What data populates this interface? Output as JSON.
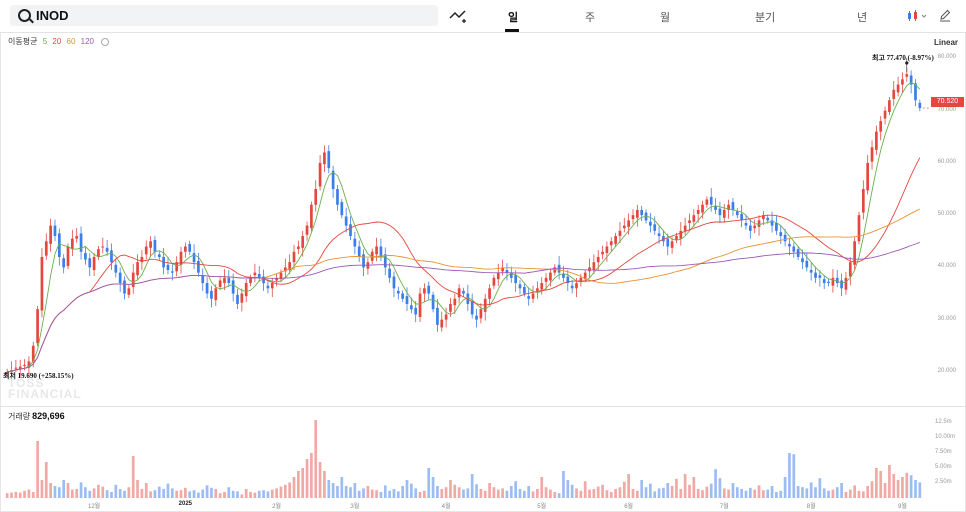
{
  "ticker": "INOD",
  "tabs": [
    "일",
    "주",
    "월",
    "분기",
    "년"
  ],
  "active_tab": "일",
  "ma_legend": {
    "label": "이동평균",
    "periods": [
      "5",
      "20",
      "60",
      "120"
    ],
    "colors": [
      "#6ab04c",
      "#e5473f",
      "#e8922f",
      "#9b59b6"
    ]
  },
  "scale_label": "Linear",
  "current_price": "70.520",
  "high_label": "최고",
  "high_value": "77.470 (-8.97%)",
  "low_label": "최저",
  "low_value": "19.690 (+258.15%)",
  "volume_label": "거래량",
  "volume_value": "829,696",
  "watermark": [
    "TOSS",
    "FINANCIAL"
  ],
  "colors": {
    "up": "#e5473f",
    "down": "#3b7de9",
    "vol_up": "#f0a9a5",
    "vol_down": "#9dbdf2"
  },
  "chart_data": {
    "type": "candlestick",
    "yticks": [
      "80.000",
      "70.000",
      "60.000",
      "50.000",
      "40.000",
      "30.000",
      "20.000"
    ],
    "ylim": [
      15,
      82
    ],
    "vol_yticks": [
      "12.5m",
      "10.00m",
      "7.50m",
      "5.00m",
      "2.50m"
    ],
    "vol_ylim": [
      0,
      13
    ],
    "xticks": [
      "12월",
      "2025",
      "2월",
      "3월",
      "4월",
      "5월",
      "6월",
      "7월",
      "8월",
      "9월"
    ],
    "xtick_index": [
      20,
      41,
      62,
      80,
      101,
      123,
      143,
      165,
      185,
      206
    ],
    "bold_xtick": "2025",
    "closes": [
      20,
      20.3,
      20.8,
      21,
      21.3,
      22,
      25,
      32,
      42,
      45,
      48,
      46,
      42,
      40,
      44,
      45.5,
      46,
      43,
      41.5,
      40,
      42,
      43.5,
      44,
      43,
      41,
      39,
      37,
      35,
      36,
      39,
      41,
      42,
      44,
      45,
      43,
      42,
      40,
      39.5,
      39,
      41,
      43,
      44,
      43,
      41,
      39,
      37,
      35,
      34,
      36,
      37.5,
      38,
      37,
      35,
      33,
      35,
      37,
      38,
      39,
      38,
      37,
      36,
      37,
      38,
      39,
      40,
      41,
      43,
      44,
      46,
      48,
      52,
      55,
      60,
      62,
      59,
      55,
      52,
      50,
      48,
      46,
      44,
      42,
      40,
      41,
      43,
      44,
      42,
      40,
      38,
      36,
      35,
      34,
      33,
      32,
      31,
      35,
      36,
      35,
      32,
      29,
      30,
      31,
      33,
      34,
      36,
      35,
      33,
      31,
      30,
      32,
      34,
      36,
      38,
      39,
      40,
      39,
      38,
      37,
      36,
      35,
      34,
      35,
      36,
      37,
      38,
      39,
      40,
      39,
      38,
      37,
      36,
      37,
      38,
      39,
      40,
      41,
      42,
      43,
      44,
      45,
      46,
      47,
      48,
      49,
      50,
      51,
      50,
      49,
      48,
      47,
      46,
      45,
      44,
      45,
      46,
      47,
      48,
      49,
      50,
      51,
      52,
      53,
      52,
      51,
      50,
      51,
      52,
      51,
      50,
      49,
      48,
      47,
      48,
      49,
      50,
      49,
      48,
      47,
      46,
      45,
      44,
      43,
      42,
      41,
      40,
      39,
      38,
      38,
      37,
      37,
      38,
      37,
      36,
      38,
      41,
      45,
      50,
      55,
      60,
      63,
      66,
      68,
      70,
      72,
      74,
      75,
      76,
      77,
      75,
      72,
      70.5
    ],
    "volumes": [
      0.8,
      0.9,
      1.0,
      0.9,
      1.2,
      1.4,
      1.0,
      9.5,
      3.0,
      6.0,
      2.5,
      2.0,
      1.8,
      3.0,
      2.5,
      1.4,
      1.5,
      2.6,
      1.8,
      1.2,
      1.6,
      2.2,
      1.9,
      1.3,
      1.0,
      2.2,
      1.5,
      1.2,
      1.8,
      7.0,
      3.0,
      1.5,
      2.5,
      1.1,
      1.3,
      1.9,
      1.5,
      2.4,
      1.6,
      1.2,
      1.3,
      1.7,
      1.1,
      1.3,
      0.9,
      1.4,
      2.1,
      1.7,
      1.5,
      0.8,
      1.0,
      1.8,
      1.2,
      1.1,
      0.6,
      1.5,
      1.0,
      0.9,
      1.2,
      1.3,
      1.1,
      1.4,
      1.6,
      1.9,
      2.2,
      2.6,
      3.5,
      4.5,
      5.0,
      6.5,
      7.5,
      13.0,
      6.0,
      4.5,
      3.0,
      2.5,
      2.0,
      3.5,
      2.0,
      1.8,
      2.5,
      1.2,
      1.6,
      2.0,
      1.4,
      1.3,
      1.0,
      2.1,
      1.2,
      1.5,
      1.1,
      2.0,
      3.0,
      2.4,
      1.6,
      1.0,
      1.2,
      5.0,
      3.5,
      2.0,
      1.5,
      1.8,
      3.0,
      2.2,
      1.8,
      1.4,
      1.6,
      4.0,
      2.3,
      1.5,
      1.2,
      2.5,
      1.8,
      1.4,
      1.6,
      1.2,
      2.0,
      2.8,
      1.5,
      1.2,
      2.0,
      1.1,
      1.5,
      3.5,
      1.8,
      1.4,
      1.0,
      0.8,
      4.5,
      3.0,
      2.2,
      1.6,
      1.2,
      2.8,
      1.4,
      1.5,
      1.9,
      2.2,
      1.3,
      1.0,
      1.5,
      1.8,
      2.7,
      4.0,
      1.5,
      1.2,
      3.0,
      1.8,
      2.4,
      1.1,
      1.6,
      1.7,
      2.5,
      2.0,
      3.2,
      1.5,
      4.0,
      2.2,
      3.5,
      1.5,
      1.3,
      1.9,
      2.4,
      4.8,
      3.3,
      1.6,
      1.4,
      2.5,
      1.8,
      1.5,
      1.2,
      1.7,
      1.4,
      2.1,
      1.3,
      1.4,
      2.0,
      1.0,
      1.2,
      3.5,
      7.5,
      7.3,
      2.0,
      1.8,
      1.6,
      2.6,
      1.8,
      3.3,
      1.6,
      1.2,
      1.4,
      1.8,
      2.5,
      1.0,
      1.4,
      2.1,
      1.2,
      1.1,
      2.0,
      2.8,
      5.0,
      4.5,
      2.5,
      5.5,
      4.0,
      3.0,
      3.5,
      4.2,
      3.8,
      3.0,
      2.6,
      2.5,
      1.4
    ]
  }
}
